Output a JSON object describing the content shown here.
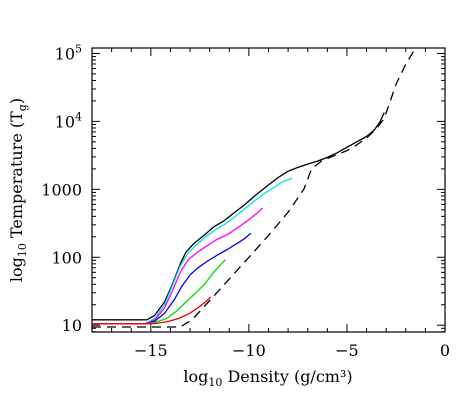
{
  "chart_data": {
    "type": "line",
    "title": "",
    "xlabel": {
      "prefix": "log",
      "sub": "10",
      "text": " Density (g/cm³)"
    },
    "ylabel": {
      "prefix": "log",
      "sub": "10",
      "text": " Temperature (T",
      "sub2": "g",
      "suffix": ")"
    },
    "xlim": [
      -18,
      0
    ],
    "ylim_log10": [
      0.9,
      5.08
    ],
    "y_scale": "log",
    "grid": false,
    "x_ticks": [
      {
        "value": -15,
        "label": "−15"
      },
      {
        "value": -10,
        "label": "−10"
      },
      {
        "value": -5,
        "label": "−5"
      },
      {
        "value": 0,
        "label": "0"
      }
    ],
    "y_ticks": [
      {
        "value": 10,
        "label": "10"
      },
      {
        "value": 100,
        "label": "100"
      },
      {
        "value": 1000,
        "label": "1000"
      },
      {
        "value": 10000,
        "base": "10",
        "exp": "4"
      },
      {
        "value": 100000,
        "base": "10",
        "exp": "5"
      }
    ],
    "series": [
      {
        "color": "#000000",
        "dash": false,
        "points": [
          [
            -18,
            12
          ],
          [
            -15.2,
            12
          ],
          [
            -14.8,
            14
          ],
          [
            -14.3,
            22
          ],
          [
            -13.9,
            40
          ],
          [
            -13.5,
            80
          ],
          [
            -13.2,
            120
          ],
          [
            -12.8,
            160
          ],
          [
            -12.2,
            220
          ],
          [
            -11.8,
            280
          ],
          [
            -11.3,
            340
          ],
          [
            -10.8,
            440
          ],
          [
            -10.2,
            600
          ],
          [
            -9.7,
            800
          ],
          [
            -9.1,
            1100
          ],
          [
            -8.5,
            1500
          ],
          [
            -8.0,
            1850
          ],
          [
            -7.5,
            2100
          ],
          [
            -7.0,
            2350
          ],
          [
            -6.5,
            2600
          ],
          [
            -6.0,
            2950
          ],
          [
            -5.5,
            3450
          ],
          [
            -5.0,
            4150
          ],
          [
            -4.5,
            5000
          ],
          [
            -4.0,
            6000
          ],
          [
            -3.6,
            7500
          ],
          [
            -3.3,
            10000
          ],
          [
            -3.1,
            13500
          ]
        ]
      },
      {
        "color": "#00e5e5",
        "dash": false,
        "points": [
          [
            -18,
            10.5
          ],
          [
            -15.3,
            10.5
          ],
          [
            -14.8,
            12.5
          ],
          [
            -14.3,
            20
          ],
          [
            -13.9,
            38
          ],
          [
            -13.5,
            75
          ],
          [
            -13.1,
            115
          ],
          [
            -12.7,
            150
          ],
          [
            -12.2,
            200
          ],
          [
            -11.7,
            255
          ],
          [
            -11.2,
            310
          ],
          [
            -10.7,
            400
          ],
          [
            -10.2,
            520
          ],
          [
            -9.7,
            680
          ],
          [
            -9.2,
            870
          ],
          [
            -8.7,
            1080
          ],
          [
            -8.3,
            1280
          ],
          [
            -7.8,
            1450
          ]
        ]
      },
      {
        "color": "#ff00ff",
        "dash": false,
        "points": [
          [
            -18,
            10.5
          ],
          [
            -15.3,
            10.5
          ],
          [
            -14.8,
            12
          ],
          [
            -14.3,
            18
          ],
          [
            -13.9,
            32
          ],
          [
            -13.5,
            60
          ],
          [
            -13.1,
            92
          ],
          [
            -12.6,
            120
          ],
          [
            -12.1,
            150
          ],
          [
            -11.6,
            185
          ],
          [
            -11.1,
            215
          ],
          [
            -10.6,
            270
          ],
          [
            -10.1,
            340
          ],
          [
            -9.6,
            440
          ],
          [
            -9.3,
            530
          ]
        ]
      },
      {
        "color": "#0000ee",
        "dash": false,
        "points": [
          [
            -18,
            10.5
          ],
          [
            -15.3,
            10.5
          ],
          [
            -14.8,
            11.5
          ],
          [
            -14.3,
            15
          ],
          [
            -13.8,
            24
          ],
          [
            -13.4,
            38
          ],
          [
            -13.0,
            55
          ],
          [
            -12.6,
            70
          ],
          [
            -12.1,
            88
          ],
          [
            -11.6,
            108
          ],
          [
            -11.1,
            130
          ],
          [
            -10.6,
            160
          ],
          [
            -10.2,
            190
          ],
          [
            -9.9,
            225
          ]
        ]
      },
      {
        "color": "#00dd00",
        "dash": false,
        "points": [
          [
            -18,
            10.5
          ],
          [
            -15.3,
            10.5
          ],
          [
            -14.8,
            11
          ],
          [
            -14.2,
            12.5
          ],
          [
            -13.7,
            16
          ],
          [
            -13.2,
            22
          ],
          [
            -12.7,
            30
          ],
          [
            -12.2,
            42
          ],
          [
            -11.8,
            60
          ],
          [
            -11.4,
            80
          ],
          [
            -11.2,
            92
          ]
        ]
      },
      {
        "color": "#ee0000",
        "dash": false,
        "points": [
          [
            -18,
            10.5
          ],
          [
            -15.3,
            10.5
          ],
          [
            -14.8,
            10.6
          ],
          [
            -14.2,
            11.2
          ],
          [
            -13.6,
            12.5
          ],
          [
            -13.0,
            15
          ],
          [
            -12.5,
            19
          ],
          [
            -12.2,
            22
          ],
          [
            -11.95,
            26
          ]
        ]
      },
      {
        "color": "#000000",
        "dash": true,
        "points": [
          [
            -18,
            9.4
          ],
          [
            -13.5,
            9.4
          ],
          [
            -12.9,
            12
          ],
          [
            -12.0,
            23
          ],
          [
            -11.0,
            48
          ],
          [
            -10.0,
            100
          ],
          [
            -9.0,
            210
          ],
          [
            -8.0,
            460
          ],
          [
            -7.2,
            1000
          ],
          [
            -6.8,
            2000
          ],
          [
            -6.3,
            2600
          ],
          [
            -5.5,
            3250
          ],
          [
            -5.0,
            3700
          ],
          [
            -4.5,
            4500
          ],
          [
            -4.0,
            5700
          ],
          [
            -3.5,
            7800
          ],
          [
            -3.1,
            11000
          ],
          [
            -2.5,
            35000
          ],
          [
            -2.0,
            70000
          ],
          [
            -1.5,
            120000
          ]
        ]
      }
    ]
  }
}
